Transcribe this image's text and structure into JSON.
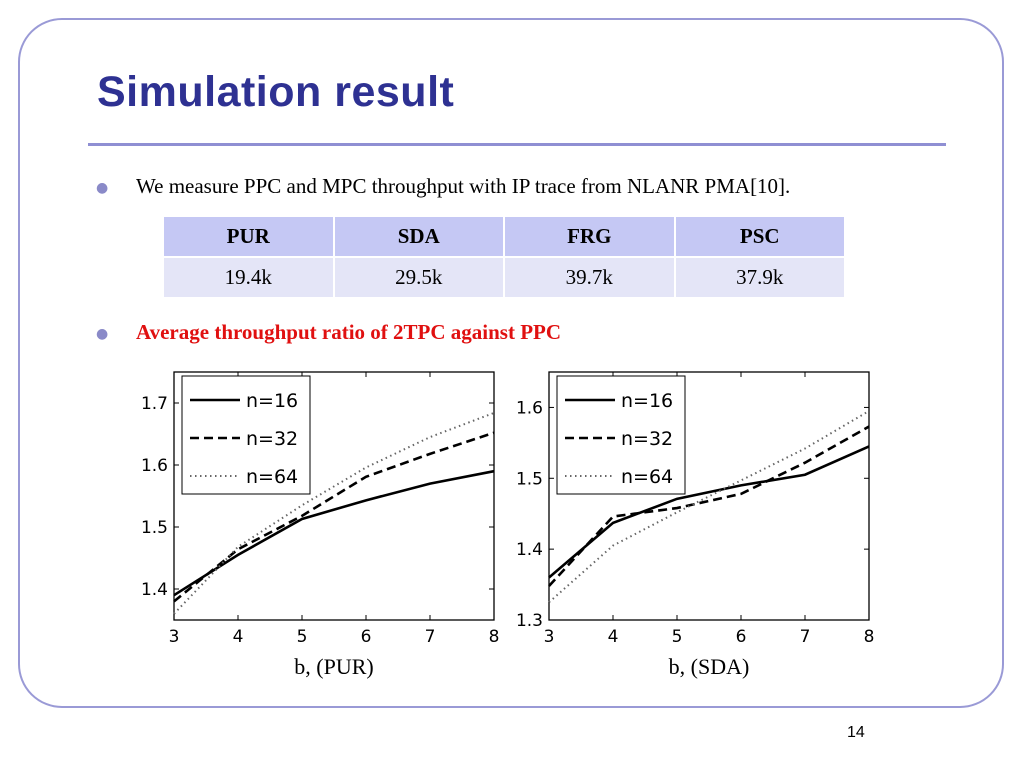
{
  "slide": {
    "title": "Simulation result",
    "bullet1": "We measure PPC and MPC throughput with IP trace from NLANR PMA[10].",
    "bullet2": "Average throughput ratio of 2TPC against PPC",
    "page_number": "14",
    "bullet_glyph": "●"
  },
  "table": {
    "headers": [
      "PUR",
      "SDA",
      "FRG",
      "PSC"
    ],
    "values": [
      "19.4k",
      "29.5k",
      "39.7k",
      "37.9k"
    ]
  },
  "colors": {
    "title": "#2e3192",
    "frame": "#9a9ad6",
    "highlight_text": "#e01010",
    "table_header": "#c5c8f4",
    "table_row": "#e4e5f7"
  },
  "chart_data": [
    {
      "type": "line",
      "xlabel": "b, (PUR)",
      "ylabel": "",
      "x": [
        3,
        4,
        5,
        6,
        7,
        8
      ],
      "xlim": [
        3,
        8
      ],
      "ylim": [
        1.35,
        1.75
      ],
      "yticks": [
        1.4,
        1.5,
        1.6,
        1.7
      ],
      "xticks": [
        3,
        4,
        5,
        6,
        7,
        8
      ],
      "legend_position": "top-left",
      "series": [
        {
          "name": "n=16",
          "style": "solid",
          "values": [
            1.39,
            1.455,
            1.513,
            1.543,
            1.57,
            1.59
          ]
        },
        {
          "name": "n=32",
          "style": "dashed",
          "values": [
            1.38,
            1.464,
            1.518,
            1.581,
            1.618,
            1.652
          ]
        },
        {
          "name": "n=64",
          "style": "dotted",
          "values": [
            1.36,
            1.468,
            1.535,
            1.596,
            1.645,
            1.684
          ]
        }
      ]
    },
    {
      "type": "line",
      "xlabel": "b, (SDA)",
      "ylabel": "",
      "x": [
        3,
        4,
        5,
        6,
        7,
        8
      ],
      "xlim": [
        3,
        8
      ],
      "ylim": [
        1.3,
        1.65
      ],
      "yticks": [
        1.3,
        1.4,
        1.5,
        1.6
      ],
      "xticks": [
        3,
        4,
        5,
        6,
        7,
        8
      ],
      "legend_position": "top-left",
      "series": [
        {
          "name": "n=16",
          "style": "solid",
          "values": [
            1.36,
            1.437,
            1.471,
            1.49,
            1.505,
            1.545
          ]
        },
        {
          "name": "n=32",
          "style": "dashed",
          "values": [
            1.348,
            1.446,
            1.458,
            1.478,
            1.522,
            1.573
          ]
        },
        {
          "name": "n=64",
          "style": "dotted",
          "values": [
            1.325,
            1.405,
            1.452,
            1.497,
            1.542,
            1.595
          ]
        }
      ]
    }
  ]
}
